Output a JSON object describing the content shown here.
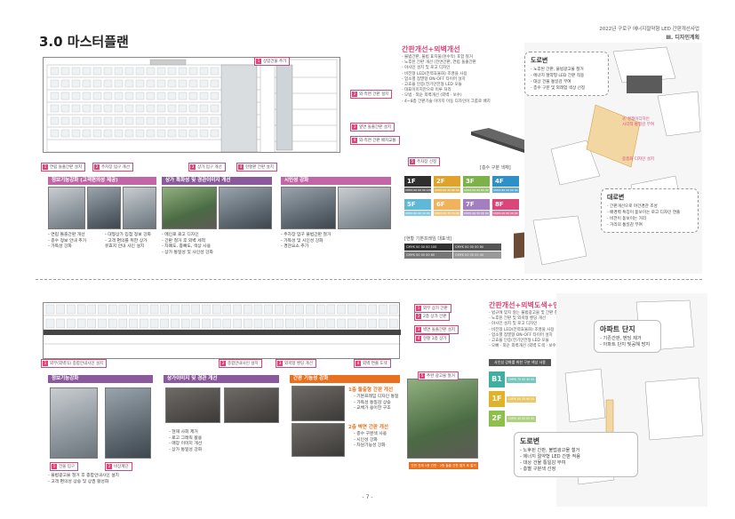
{
  "header": {
    "title": "3.0 마스터플랜",
    "project": "2022년 구로구 에너지절약형 LED 간판개선사업",
    "section": "Ⅲ. 디자인계획",
    "page": "- 7 -"
  },
  "top": {
    "facade_tags_right": [
      {
        "num": "1",
        "text": "상업건물 추가"
      },
      {
        "num": "2",
        "text": "외·측면 간판 설치"
      },
      {
        "num": "3",
        "text": "옆면 돌출간판 설치"
      },
      {
        "num": "4",
        "text": "외·측면 간판 배치교통"
      },
      {
        "num": "5",
        "text": "주차장 선정"
      }
    ],
    "facade_tags_bottom": [
      {
        "num": "1",
        "text": "연립 돌출간판 설치"
      },
      {
        "num": "2",
        "text": "주차장 입구 개선"
      },
      {
        "num": "3",
        "text": "상가 입구 개선"
      },
      {
        "num": "4",
        "text": "현황판 간판 설치"
      }
    ],
    "pink_title": "간판개선+외벽개선",
    "pink_bullets": [
      "- 불법간판, 불법 표지물(현수막) 포함 철거",
      "- 노후된 간판 개선 (전면간판, 연립 돌출간판",
      "- 야사인 설치 및 로고 디자인",
      "- 비전형 LED(전력효율화) 조명을 사용",
      "- 업소별 점멸형 ON-OFF 타이머 설치",
      "- 고효율 인증(전기안전형 LED 모듈",
      "- 대표이미지만으로 이루 처리",
      "- 모범 · 외순 외벽개선 (외벽 · 보수)",
      "- 4~8층 간판기술 이미지 이동 디자인이 그룹로 배치"
    ],
    "cat1": {
      "label": "정보기능강화 (고객편의성 제공)",
      "color": "#c266a8",
      "bullets": [
        "- 연립 돌출간판 개선",
        "- 층수 정보 안내 추가",
        "- 가독성 강화"
      ],
      "bullets2": [
        "- 대형상가 입점 정보 강화",
        "- 고객 편의를 위한 상가",
        "  유효지 안내 사인 설치"
      ]
    },
    "cat2": {
      "label": "상가 특화성 및 경관이미지 개선",
      "color": "#8a5a9c",
      "bullets": [
        "- 메인로 로고 디자인",
        "- 간판 철거 후 외벽 세척",
        "- 차폐도, 종뼈도, 색상 사용",
        "- 상가 통일성 및 사인성 강화"
      ]
    },
    "cat3": {
      "label": "시인성 강화",
      "color": "#c266a8",
      "bullets": [
        "- 주차장 입구 불법간판 철거",
        "- 가독성 및 시인성 강화",
        "- 경관요소 추가"
      ]
    },
    "floor_title": "[층수 구분 색채]",
    "floors": [
      {
        "label": "1F",
        "color": "#2f2f2f",
        "code": "CMYK 00 00 00 100"
      },
      {
        "label": "2F",
        "color": "#e0a22a",
        "code": "CMYK 00 35 80 00"
      },
      {
        "label": "3F",
        "color": "#7db24a",
        "code": "CMYK 50 00 80 00"
      },
      {
        "label": "4F",
        "color": "#2f8fc7",
        "code": "CMYK 80 20 00 00"
      },
      {
        "label": "5F",
        "color": "#5fb8d8",
        "code": "CMYK 60 00 10 00"
      },
      {
        "label": "6F",
        "color": "#f0b25a",
        "code": "CMYK 00 35 70 00"
      },
      {
        "label": "7F",
        "color": "#a57ec2",
        "code": "CMYK 40 50 00 00"
      },
      {
        "label": "8F",
        "color": "#d9477a",
        "code": "CMYK 00 80 20 00"
      }
    ],
    "std_title": "[현황 기본프레임 대표색]",
    "std_codes": [
      "CMYK 00 00 00 100",
      "CMYK 00 00 00 80",
      "CMYK 00 00 00 60",
      "CMYK 00 00 00 40"
    ],
    "sign_text": "오마당",
    "road_callout": {
      "title": "도로변",
      "lines": [
        "- 노후된 간판, 불법광고물 철거",
        "- 에너지 절약형 LED 간판 적용",
        "- 대상 건물 통일감 부여",
        "- 층수 구분 및 외래업 색상 선정"
      ]
    },
    "inner_callout": {
      "title": "대로변",
      "lines": [
        "- 간판개선으로 야간경관 조성",
        "- 배경벽 특징이 돋보이는 로고 디자인 연출",
        "- 비전이 돋보이는 거리",
        "- 거리의 통일감 부여"
      ]
    },
    "map_pink_labels": [
      "Ⓐ 경쟁이디자인\n시각적 통일감 부여",
      "중층화 디자인 설치"
    ]
  },
  "bottom": {
    "facade_tags_right": [
      {
        "num": "1",
        "text": "외부 상가 간판"
      },
      {
        "num": "2",
        "text": "2층 상가 간판"
      },
      {
        "num": "3",
        "text": "벽면 돌출간판 설치"
      },
      {
        "num": "4",
        "text": "현황 3층 상가"
      }
    ],
    "facade_tags_bottom": [
      {
        "num": "1",
        "text": "외부(외벽식) 종합안내사인 설치"
      },
      {
        "num": "2",
        "text": "종합안내사인 설치"
      },
      {
        "num": "3",
        "text": "외곽형 벤딩 개선"
      },
      {
        "num": "4",
        "text": "외벽 연출 도색"
      }
    ],
    "pink_title": "간판개선+외벽도색+인포메이션 사인 설치",
    "pink_bullets": [
      "- 법규에 맞지 않는 불법광고물 및 간판 철거",
      "- 노후된 간판 및 외곽형 벤딩 개선",
      "- 야사인 설치 및 로고 디자인",
      "- 비전형 LED(전력효율화) 조명을 사용",
      "- 업소별 점멸형 ON-OFF 타이머 설치",
      "- 고효율 인증(전기안전형 LED 모듈",
      "- 오빠 · 외순 외벽개선 (외벽 도색 · 보수)"
    ],
    "floor_title": "사인성 강화를 위한 구분 색상 사용",
    "floors": [
      {
        "label": "B1",
        "color": "#3fb0a0",
        "code": "CMYK 70 00 40 00"
      },
      {
        "label": "1F",
        "color": "#e0b22a",
        "code": "CMYK 00 30 90 00"
      },
      {
        "label": "2F",
        "color": "#8cc04a",
        "code": "CMYK 45 00 85 00"
      }
    ],
    "apt_callout": {
      "title": "아파트 단지",
      "lines": [
        "- 기존간판, 벤딩 제거",
        "- 아파트 단지 빛공해 방지"
      ]
    },
    "road_callout": {
      "title": "도로변",
      "lines": [
        "- 노후된 간판, 불법광고물 철거",
        "- 에너지 절약형 LED 간판 적용",
        "- 대상 건물 통일감 부여",
        "- 층별 구분색 선정"
      ]
    },
    "cat1": {
      "label": "정보기능강화",
      "color": "#8a5a9c",
      "tags": [
        {
          "num": "1",
          "text": "건물 입구"
        },
        {
          "num": "2",
          "text": "비상계단"
        }
      ],
      "bullets": [
        "- 불법광고물 철거 후 종합안내사인 설치",
        "- 고객 편의성 상승 및 상권 활성화"
      ]
    },
    "cat2": {
      "label": "상가이미지 및 경관 개선",
      "color": "#8a5a9c",
      "bullets": [
        "- 현재 사회 제거",
        "- 로고 그래픽 활용",
        "- 매장 이미지 개선",
        "- 상가 통일성 강화"
      ]
    },
    "cat3": {
      "label": "간판 기능성 강화",
      "color": "#e8701e",
      "group1_title": "1층 돌출형 간판 개선",
      "group1": [
        "- 기본프레임 디자인 통일",
        "- 가독성 통일감 상승",
        "- 교체가 용이한 구조"
      ],
      "group2_title": "2층 벽면 간판 개선",
      "group2": [
        "- 층수 구분색 사용",
        "- 시인성 강화",
        "- 차원기능성 강화"
      ],
      "caption": "간판 전체 1층 간판 · 2층 돌출 간판 철거 후 철거",
      "photo_caption": "추완 광고물 철거"
    }
  }
}
